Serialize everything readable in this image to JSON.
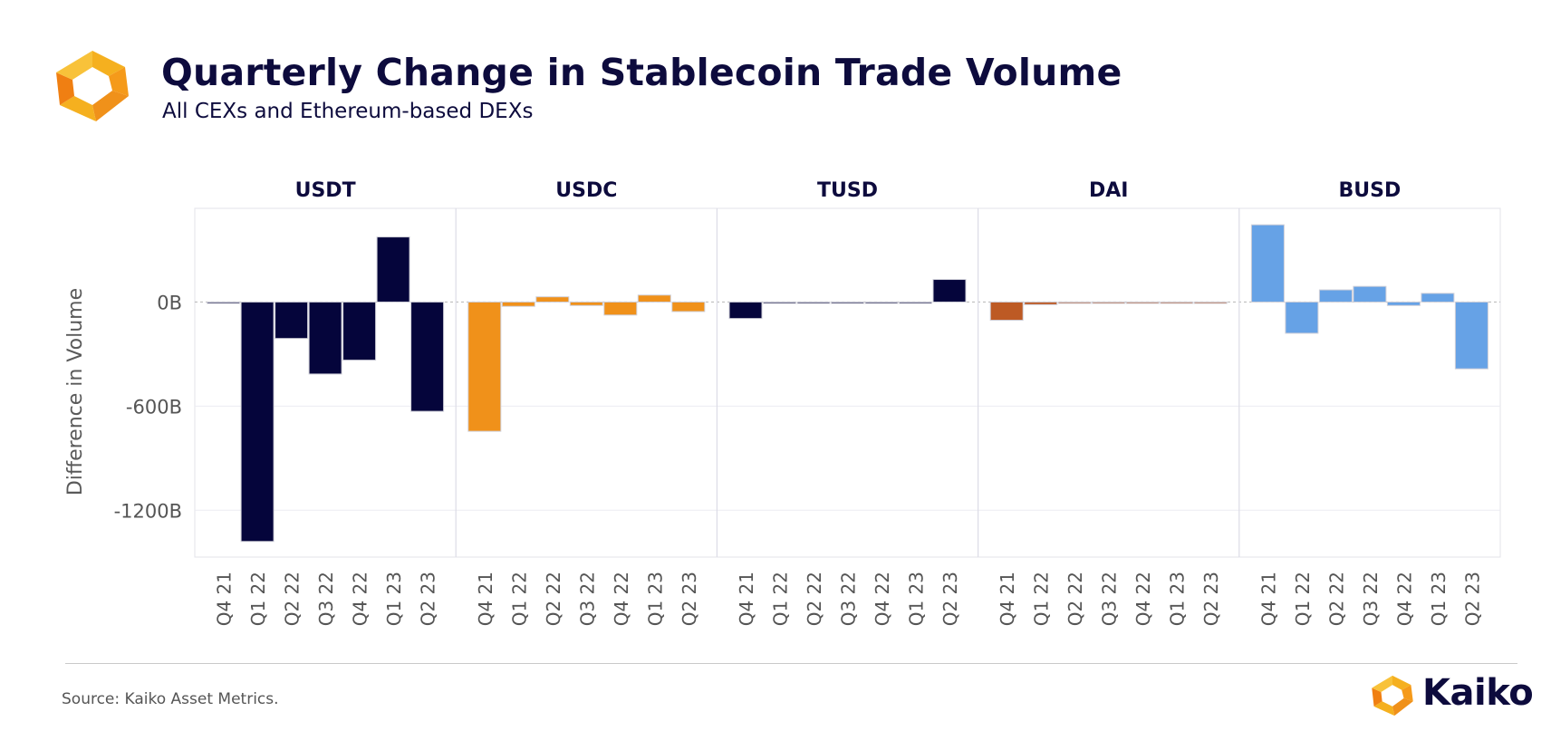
{
  "header": {
    "title": "Quarterly Change in Stablecoin Trade Volume",
    "subtitle": "All CEXs and Ethereum-based DEXs"
  },
  "footer": {
    "source": "Source: Kaiko Asset Metrics.",
    "brand": "Kaiko"
  },
  "colors": {
    "USDT": "#05053b",
    "USDC": "#f0911a",
    "TUSD": "#05053b",
    "DAI": "#bd5a24",
    "BUSD": "#66a2e6"
  },
  "chart_data": {
    "type": "bar",
    "ylabel": "Difference in Volume",
    "ylim": [
      -1470,
      540
    ],
    "yticks": [
      0,
      -600,
      -1200
    ],
    "ytick_labels": [
      "0B",
      "-600B",
      "-1200B"
    ],
    "grid": true,
    "categories": [
      "Q4 21",
      "Q1 22",
      "Q2 22",
      "Q3 22",
      "Q4 22",
      "Q1 23",
      "Q2 23"
    ],
    "series": [
      {
        "name": "USDT",
        "values": [
          0,
          -1380,
          -210,
          -415,
          -335,
          375,
          -630
        ]
      },
      {
        "name": "USDC",
        "values": [
          -745,
          -25,
          30,
          -20,
          -75,
          40,
          -55
        ]
      },
      {
        "name": "TUSD",
        "values": [
          -95,
          -3,
          -3,
          -3,
          -3,
          -3,
          130
        ]
      },
      {
        "name": "DAI",
        "values": [
          -105,
          -15,
          -5,
          -5,
          -5,
          -5,
          -5
        ]
      },
      {
        "name": "BUSD",
        "values": [
          445,
          -180,
          70,
          90,
          -20,
          50,
          -385
        ]
      }
    ]
  }
}
